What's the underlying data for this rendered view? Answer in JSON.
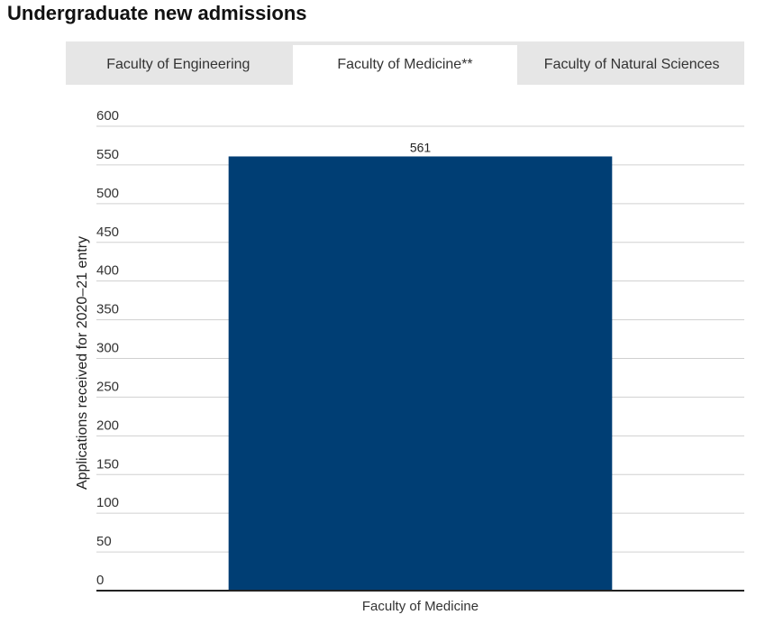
{
  "page": {
    "title": "Undergraduate new admissions"
  },
  "tabs": [
    {
      "label": "Faculty of Engineering",
      "active": false
    },
    {
      "label": "Faculty of Medicine**",
      "active": true
    },
    {
      "label": "Faculty of Natural Sciences",
      "active": false
    }
  ],
  "colors": {
    "bar": "#003e74",
    "tab_bg": "#e6e6e6",
    "grid": "#d0d0d0",
    "axis": "#222222"
  },
  "chart_data": {
    "type": "bar",
    "categories": [
      "Faculty of Medicine"
    ],
    "values": [
      561
    ],
    "data_labels": [
      "561"
    ],
    "title": "",
    "xlabel": "",
    "ylabel": "Applications received for 2020–21 entry",
    "ylim": [
      0,
      600
    ],
    "yticks": [
      0,
      50,
      100,
      150,
      200,
      250,
      300,
      350,
      400,
      450,
      500,
      550,
      600
    ],
    "grid": true,
    "legend": "none"
  }
}
